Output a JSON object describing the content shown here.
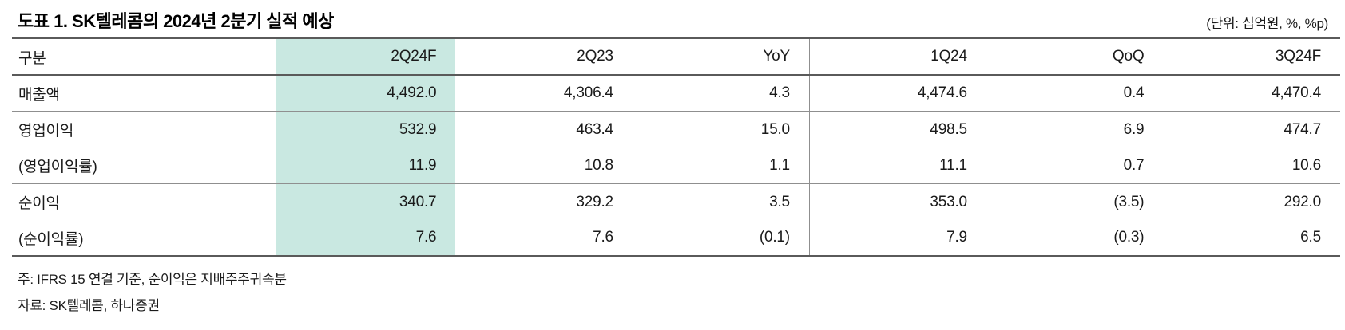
{
  "title": "도표 1. SK텔레콤의 2024년 2분기 실적 예상",
  "unit_note": "(단위: 십억원, %, %p)",
  "table": {
    "columns": [
      "구분",
      "2Q24F",
      "2Q23",
      "YoY",
      "1Q24",
      "QoQ",
      "3Q24F"
    ],
    "highlight_column": "2Q24F",
    "rows": [
      {
        "label": "매출액",
        "values": [
          "4,492.0",
          "4,306.4",
          "4.3",
          "4,474.6",
          "0.4",
          "4,470.4"
        ]
      },
      {
        "label": "영업이익",
        "values": [
          "532.9",
          "463.4",
          "15.0",
          "498.5",
          "6.9",
          "474.7"
        ]
      },
      {
        "label": "(영업이익률)",
        "values": [
          "11.9",
          "10.8",
          "1.1",
          "11.1",
          "0.7",
          "10.6"
        ]
      },
      {
        "label": "순이익",
        "values": [
          "340.7",
          "329.2",
          "3.5",
          "353.0",
          "(3.5)",
          "292.0"
        ]
      },
      {
        "label": "(순이익률)",
        "values": [
          "7.6",
          "7.6",
          "(0.1)",
          "7.9",
          "(0.3)",
          "6.5"
        ]
      }
    ]
  },
  "notes": {
    "footnote": "주: IFRS 15 연결 기준, 순이익은 지배주주귀속분",
    "source": "자료: SK텔레콤, 하나증권"
  },
  "colors": {
    "highlight": "#c9e8e1",
    "border_strong": "#5a5a5a",
    "border_light": "#8f8f8f"
  }
}
